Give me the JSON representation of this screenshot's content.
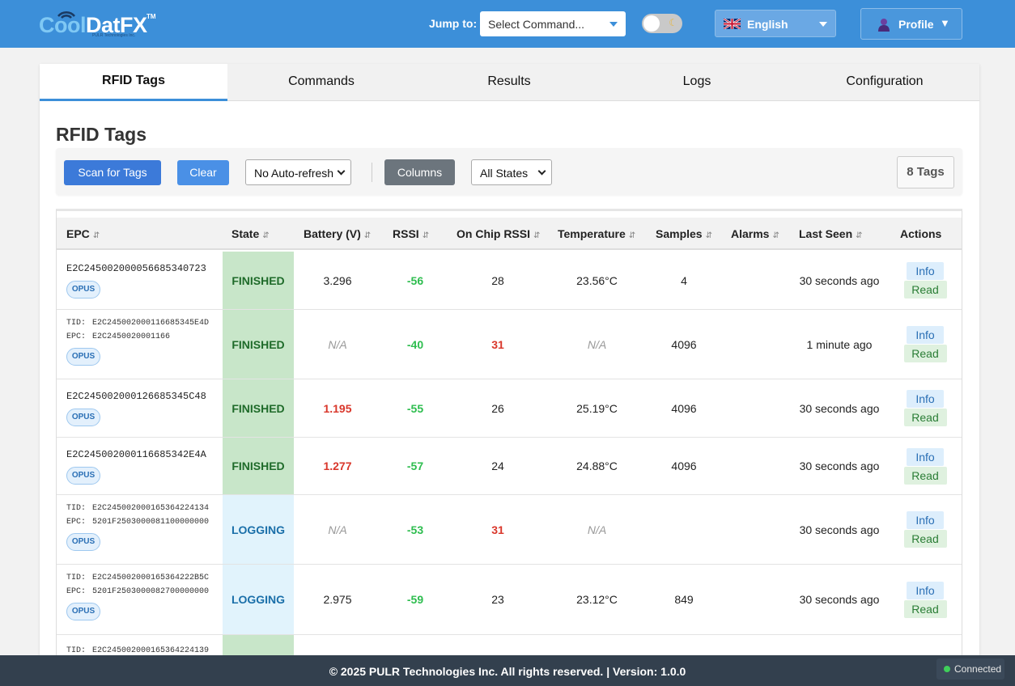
{
  "header": {
    "logo_cool": "Cool",
    "logo_datfx": "DatFX",
    "logo_tm": "TM",
    "logo_sub": "PULR Technologies Inc.",
    "jump_label": "Jump to:",
    "jump_placeholder": "Select Command...",
    "language": "English",
    "profile": "Profile",
    "profile_caret": "▼"
  },
  "tabs": [
    {
      "label": "RFID Tags",
      "active": true
    },
    {
      "label": "Commands",
      "active": false
    },
    {
      "label": "Results",
      "active": false
    },
    {
      "label": "Logs",
      "active": false
    },
    {
      "label": "Configuration",
      "active": false
    }
  ],
  "page_title": "RFID Tags",
  "toolbar": {
    "scan_label": "Scan for Tags",
    "clear_label": "Clear",
    "auto_refresh": "No Auto-refresh",
    "columns_label": "Columns",
    "state_filter": "All States",
    "tag_count": "8 Tags"
  },
  "table": {
    "sort_glyph": "⇵",
    "columns": [
      "EPC",
      "State",
      "Battery (V)",
      "RSSI",
      "On Chip RSSI",
      "Temperature",
      "Samples",
      "Alarms",
      "Last Seen",
      "Actions"
    ],
    "rows": [
      {
        "epc": "E2C245002000056685340723",
        "tid": "",
        "epc2": "",
        "badge": "OPUS",
        "state": "FINISHED",
        "battery": "3.296",
        "battery_style": "normal",
        "rssi": "-56",
        "onchip": "28",
        "onchip_style": "normal",
        "temperature": "23.56°C",
        "temp_style": "normal",
        "samples": "4",
        "alarms": "",
        "last_seen": "30 seconds ago"
      },
      {
        "epc": "",
        "tid": "E2C2450020001166853​45E4D",
        "epc2": "E2C2450020001166",
        "badge": "OPUS",
        "state": "FINISHED",
        "battery": "N/A",
        "battery_style": "na",
        "rssi": "-40",
        "onchip": "31",
        "onchip_style": "red",
        "temperature": "N/A",
        "temp_style": "na",
        "samples": "4096",
        "alarms": "",
        "last_seen": "1 minute ago"
      },
      {
        "epc": "E2C245002000126685345C48",
        "tid": "",
        "epc2": "",
        "badge": "OPUS",
        "state": "FINISHED",
        "battery": "1.195",
        "battery_style": "red",
        "rssi": "-55",
        "onchip": "26",
        "onchip_style": "normal",
        "temperature": "25.19°C",
        "temp_style": "normal",
        "samples": "4096",
        "alarms": "",
        "last_seen": "30 seconds ago"
      },
      {
        "epc": "E2C245002000116685342E4A",
        "tid": "",
        "epc2": "",
        "badge": "OPUS",
        "state": "FINISHED",
        "battery": "1.277",
        "battery_style": "red",
        "rssi": "-57",
        "onchip": "24",
        "onchip_style": "normal",
        "temperature": "24.88°C",
        "temp_style": "normal",
        "samples": "4096",
        "alarms": "",
        "last_seen": "30 seconds ago"
      },
      {
        "epc": "",
        "tid": "E2C245002000165364224134",
        "epc2": "5201F2503000081100000000",
        "badge": "OPUS",
        "state": "LOGGING",
        "battery": "N/A",
        "battery_style": "na",
        "rssi": "-53",
        "onchip": "31",
        "onchip_style": "red",
        "temperature": "N/A",
        "temp_style": "na",
        "samples": "",
        "alarms": "",
        "last_seen": "30 seconds ago"
      },
      {
        "epc": "",
        "tid": "E2C2450020001653642​22B5C",
        "epc2": "5201F2503000082700000000",
        "badge": "OPUS",
        "state": "LOGGING",
        "battery": "2.975",
        "battery_style": "normal",
        "rssi": "-59",
        "onchip": "23",
        "onchip_style": "normal",
        "temperature": "23.12°C",
        "temp_style": "normal",
        "samples": "849",
        "alarms": "",
        "last_seen": "30 seconds ago"
      },
      {
        "epc": "",
        "tid": "E2C245002000165364224139",
        "epc2": "",
        "badge": "",
        "state": "",
        "battery": "",
        "battery_style": "normal",
        "rssi": "",
        "onchip": "",
        "onchip_style": "normal",
        "temperature": "",
        "temp_style": "normal",
        "samples": "",
        "alarms": "",
        "last_seen": "",
        "partial": true
      }
    ],
    "tid_label": "TID:",
    "epc_label": "EPC:",
    "info_label": "Info",
    "read_label": "Read"
  },
  "footer": {
    "text": "© 2025 PULR Technologies Inc. All rights reserved. | Version: 1.0.0",
    "status": "Connected"
  },
  "colors": {
    "header": "#3c8fd9",
    "finished_bg": "#c8e6c9",
    "logging_bg": "#e1f3fc",
    "footer": "#33404e"
  }
}
